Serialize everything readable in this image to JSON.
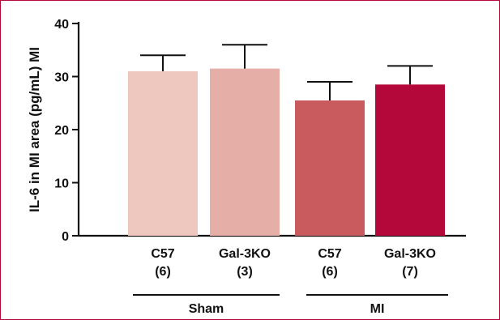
{
  "chart_data": {
    "type": "bar",
    "title": "",
    "ylabel": "IL-6 in MI area (pg/mL) MI",
    "xlabel": "",
    "ylim": [
      0,
      40
    ],
    "yticks": [
      0,
      10,
      20,
      30,
      40
    ],
    "grid": false,
    "categories": [
      {
        "name": "C57",
        "n": "(6)",
        "group": "Sham",
        "value": 31,
        "error": 3,
        "color": "#eec7be"
      },
      {
        "name": "Gal-3KO",
        "n": "(3)",
        "group": "Sham",
        "value": 31.5,
        "error": 4.5,
        "color": "#e5aea6"
      },
      {
        "name": "C57",
        "n": "(6)",
        "group": "MI",
        "value": 25.5,
        "error": 3.5,
        "color": "#c95a5e"
      },
      {
        "name": "Gal-3KO",
        "n": "(7)",
        "group": "MI",
        "value": 28.5,
        "error": 3.5,
        "color": "#b5083a"
      }
    ],
    "groups": [
      "Sham",
      "MI"
    ],
    "colors": {
      "frame": "#b5083a",
      "axis": "#111111"
    }
  }
}
